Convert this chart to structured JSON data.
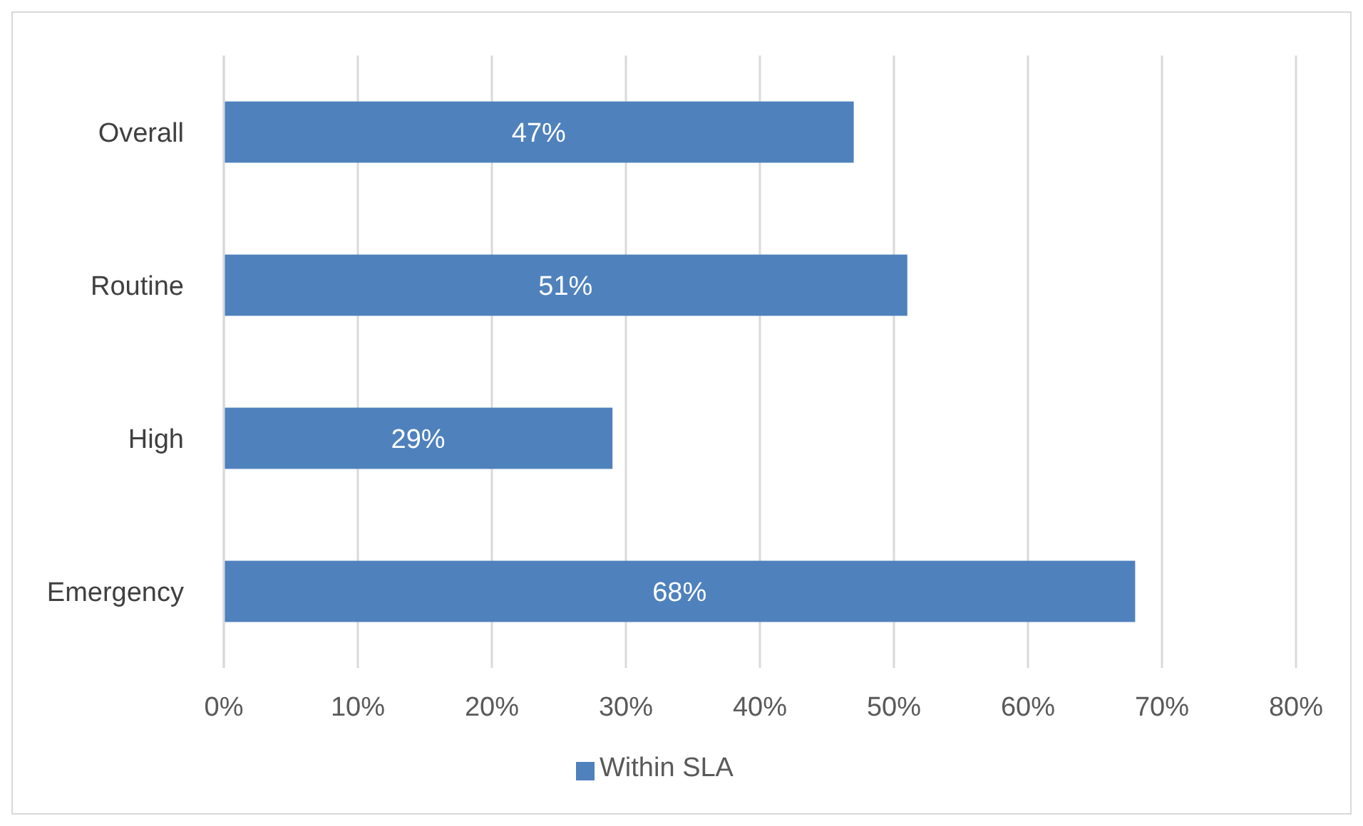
{
  "chart_data": {
    "type": "bar",
    "orientation": "horizontal",
    "categories": [
      "Overall",
      "Routine",
      "High",
      "Emergency"
    ],
    "series": [
      {
        "name": "Within SLA",
        "color": "#4f81bd",
        "values": [
          47,
          51,
          29,
          68
        ],
        "value_labels": [
          "47%",
          "51%",
          "29%",
          "68%"
        ]
      }
    ],
    "xlim": [
      0,
      80
    ],
    "xticks": [
      {
        "value": 0,
        "label": "0%"
      },
      {
        "value": 10,
        "label": "10%"
      },
      {
        "value": 20,
        "label": "20%"
      },
      {
        "value": 30,
        "label": "30%"
      },
      {
        "value": 40,
        "label": "40%"
      },
      {
        "value": 50,
        "label": "50%"
      },
      {
        "value": 60,
        "label": "60%"
      },
      {
        "value": 70,
        "label": "70%"
      },
      {
        "value": 80,
        "label": "80%"
      }
    ],
    "grid": "x",
    "legend": "bottom"
  }
}
